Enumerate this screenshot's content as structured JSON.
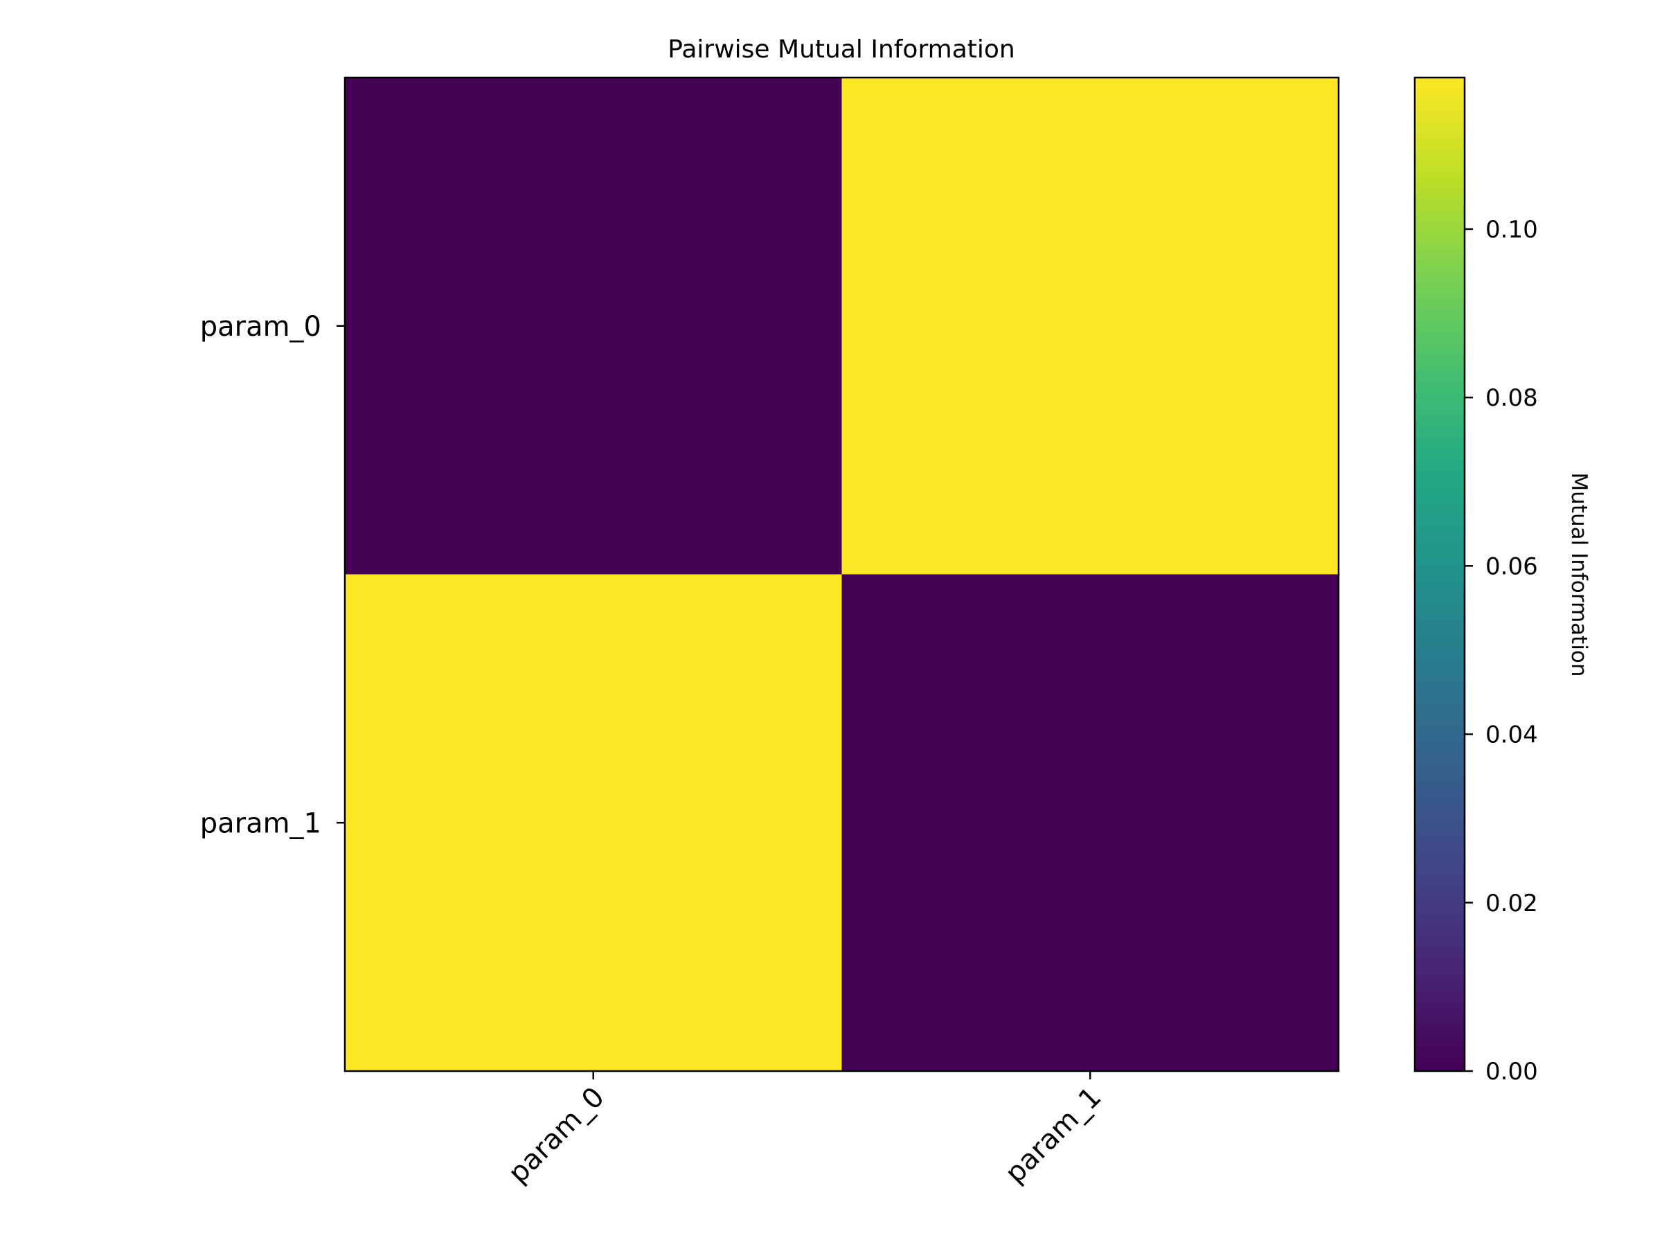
{
  "chart_data": {
    "type": "heatmap",
    "title": "Pairwise Mutual Information",
    "xlabel": "",
    "ylabel": "",
    "x_categories": [
      "param_0",
      "param_1"
    ],
    "y_categories": [
      "param_0",
      "param_1"
    ],
    "values": [
      [
        0.0,
        0.118
      ],
      [
        0.118,
        0.0
      ]
    ],
    "colormap": "viridis",
    "colorbar": {
      "label": "Mutual Information",
      "vmin": 0.0,
      "vmax": 0.118,
      "ticks": [
        0.0,
        0.02,
        0.04,
        0.06,
        0.08,
        0.1
      ],
      "tick_labels": [
        "0.00",
        "0.02",
        "0.04",
        "0.06",
        "0.08",
        "0.10"
      ]
    },
    "grid": false,
    "x_tick_rotation": 45
  }
}
